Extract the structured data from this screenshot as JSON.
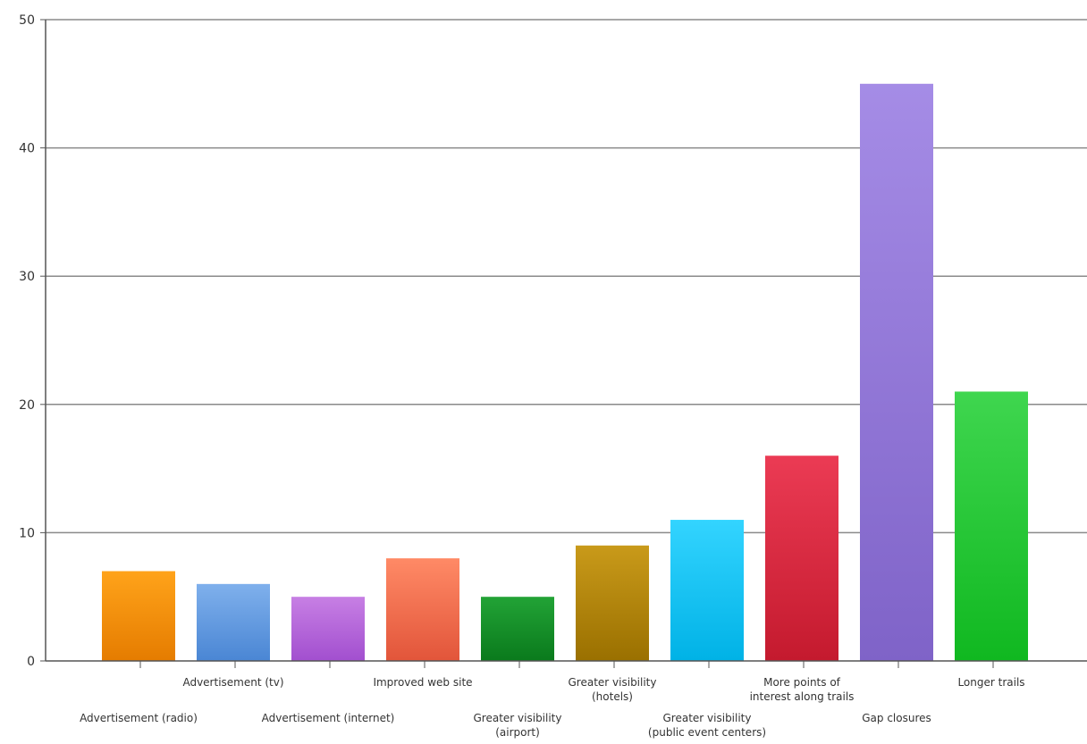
{
  "chart_data": {
    "type": "bar",
    "title": "",
    "xlabel": "",
    "ylabel": "",
    "ylim": [
      0,
      50
    ],
    "yticks": [
      0,
      10,
      20,
      30,
      40,
      50
    ],
    "grid": true,
    "categories": [
      "Advertisement (radio)",
      "Advertisement (tv)",
      "Advertisement (internet)",
      "Improved web site",
      "Greater visibility (airport)",
      "Greater visibility (hotels)",
      "Greater visibility (public event centers)",
      "More points of interest along trails",
      "Gap closures",
      "Longer trails"
    ],
    "category_label_lines": [
      [
        "Advertisement (radio)"
      ],
      [
        "Advertisement (tv)"
      ],
      [
        "Advertisement (internet)"
      ],
      [
        "Improved web site"
      ],
      [
        "Greater visibility",
        "(airport)"
      ],
      [
        "Greater visibility",
        "(hotels)"
      ],
      [
        "Greater visibility",
        "(public event centers)"
      ],
      [
        "More points of",
        "interest along trails"
      ],
      [
        "Gap closures"
      ],
      [
        "Longer trails"
      ]
    ],
    "values": [
      7,
      6,
      5,
      8,
      5,
      9,
      11,
      16,
      45,
      21
    ],
    "colors": [
      [
        "#ffa31a",
        "#e57c00"
      ],
      [
        "#7fb0ec",
        "#4a86d4"
      ],
      [
        "#c77fe4",
        "#a24fcf"
      ],
      [
        "#ff8a66",
        "#e2553a"
      ],
      [
        "#22a336",
        "#0a7a1c"
      ],
      [
        "#c99a1a",
        "#9a7000"
      ],
      [
        "#33d4ff",
        "#00b2e6"
      ],
      [
        "#eb3b54",
        "#c41a2e"
      ],
      [
        "#a58ce6",
        "#7f63c8"
      ],
      [
        "#3fd64f",
        "#10b820"
      ]
    ]
  }
}
